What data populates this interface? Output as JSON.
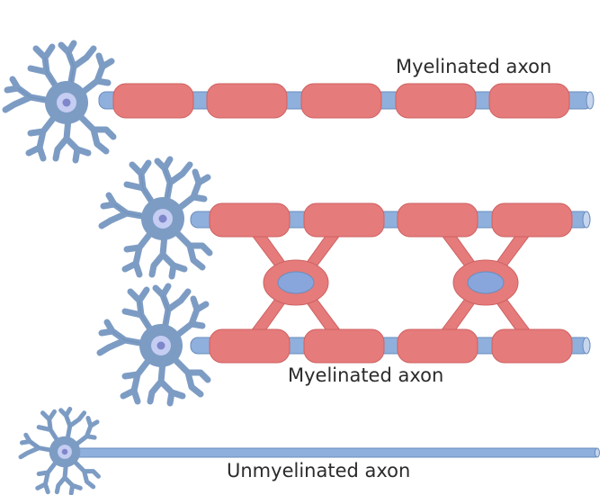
{
  "labels": {
    "top_axon": "Myelinated axon",
    "middle_axon": "Myelinated axon",
    "bottom_axon": "Unmyelinated axon"
  },
  "colors": {
    "neuron_fill": "#7d9cc4",
    "neuron_stroke": "#5a7ca8",
    "nucleus_outer": "#c5cdf2",
    "nucleus_inner": "#7f86c9",
    "axon_fill": "#8fb0dc",
    "axon_stroke": "#6a8cbd",
    "myelin_fill": "#e57b7b",
    "myelin_stroke": "#cf6262",
    "oligo_nucleus": "#88a6dc",
    "label_text": "#2b2b2b"
  }
}
